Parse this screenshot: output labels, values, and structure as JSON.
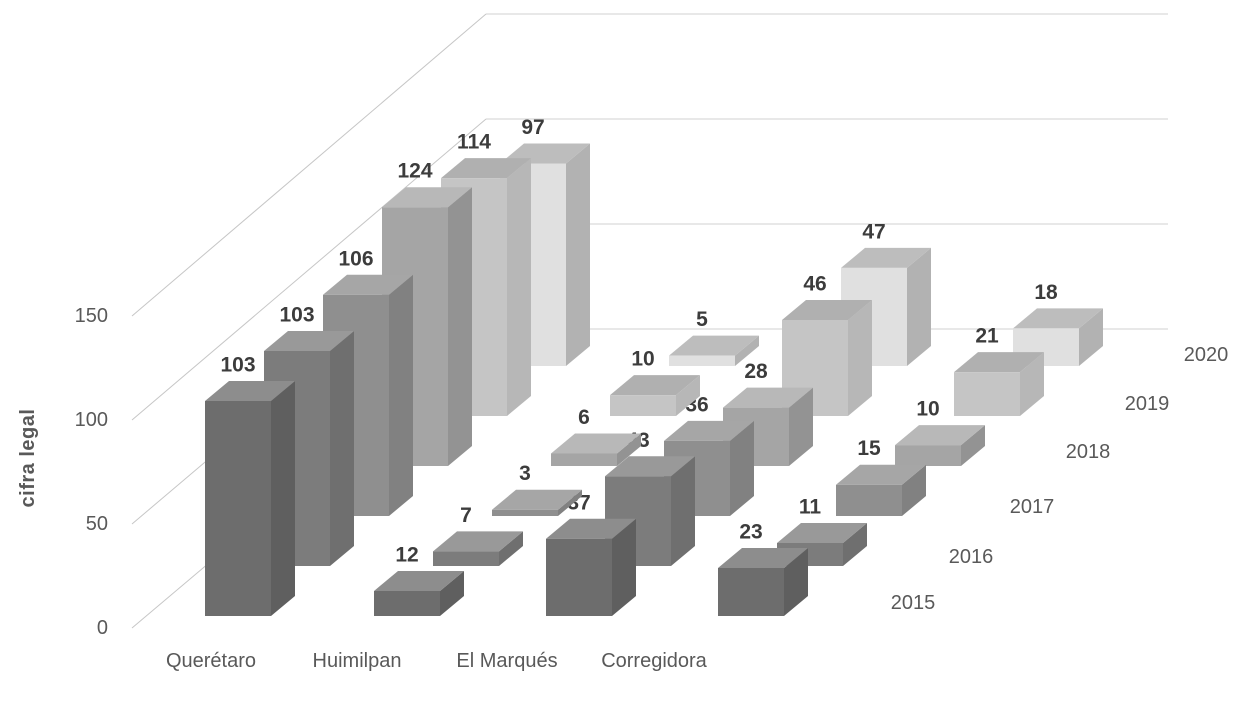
{
  "chart_data": {
    "type": "bar",
    "projection": "3d-column",
    "title": "",
    "ylabel": "cifra legal",
    "xlabel": "",
    "categories": [
      "Querétaro",
      "Huimilpan",
      "El Marqués",
      "Corregidora"
    ],
    "series": [
      {
        "name": "2015",
        "values": [
          103,
          12,
          37,
          23
        ]
      },
      {
        "name": "2016",
        "values": [
          103,
          7,
          43,
          11
        ]
      },
      {
        "name": "2017",
        "values": [
          106,
          3,
          36,
          15
        ]
      },
      {
        "name": "2018",
        "values": [
          124,
          6,
          28,
          10
        ]
      },
      {
        "name": "2019",
        "values": [
          114,
          10,
          46,
          21
        ]
      },
      {
        "name": "2020",
        "values": [
          97,
          5,
          47,
          18
        ]
      }
    ],
    "depth_labels": [
      "2015",
      "2016",
      "2017",
      "2018",
      "2019",
      "2020"
    ],
    "y_ticks": [
      0,
      50,
      100,
      150
    ],
    "ylim": [
      0,
      150
    ],
    "grid": true,
    "legend": "none",
    "data_labels": true,
    "series_colors": [
      {
        "front": "#6d6d6d",
        "top": "#8d8d8d",
        "side": "#5f5f5f"
      },
      {
        "front": "#7c7c7c",
        "top": "#999999",
        "side": "#6f6f6f"
      },
      {
        "front": "#8f8f8f",
        "top": "#a6a6a6",
        "side": "#818181"
      },
      {
        "front": "#a5a5a5",
        "top": "#b8b8b8",
        "side": "#939393"
      },
      {
        "front": "#c5c5c5",
        "top": "#b0b0b0",
        "side": "#b7b7b7"
      },
      {
        "front": "#e0e0e0",
        "top": "#bdbdbd",
        "side": "#b2b2b2"
      }
    ],
    "axis_text_color": "#595959",
    "value_label_color": "#3c3c3c",
    "gridline_color": "#d9d9d9",
    "depth_line_color": "#c6c6c6",
    "background": "#ffffff"
  }
}
